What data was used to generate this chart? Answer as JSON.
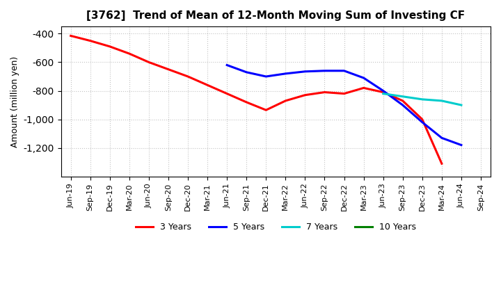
{
  "title": "[3762]  Trend of Mean of 12-Month Moving Sum of Investing CF",
  "ylabel": "Amount (million yen)",
  "background_color": "#ffffff",
  "grid_color": "#aaaaaa",
  "ylim": [
    -1400,
    -350
  ],
  "yticks": [
    -400,
    -600,
    -800,
    -1000,
    -1200
  ],
  "x_labels": [
    "Jun-19",
    "Sep-19",
    "Dec-19",
    "Mar-20",
    "Jun-20",
    "Sep-20",
    "Dec-20",
    "Mar-21",
    "Jun-21",
    "Sep-21",
    "Dec-21",
    "Mar-22",
    "Jun-22",
    "Sep-22",
    "Dec-22",
    "Mar-23",
    "Jun-23",
    "Sep-23",
    "Dec-23",
    "Mar-24",
    "Jun-24",
    "Sep-24"
  ],
  "series_3y": {
    "label": "3 Years",
    "color": "#ff0000",
    "x": [
      0,
      1,
      2,
      3,
      4,
      5,
      6,
      7,
      8,
      9,
      10,
      11,
      12,
      13,
      14,
      15,
      16,
      17,
      18,
      19
    ],
    "y": [
      -415,
      -450,
      -490,
      -540,
      -600,
      -650,
      -700,
      -760,
      -820,
      -880,
      -935,
      -870,
      -830,
      -810,
      -820,
      -780,
      -810,
      -870,
      -1000,
      -1310
    ]
  },
  "series_5y": {
    "label": "5 Years",
    "color": "#0000ff",
    "x": [
      8,
      9,
      10,
      11,
      12,
      13,
      14,
      15,
      16,
      17,
      18,
      19,
      20
    ],
    "y": [
      -620,
      -670,
      -700,
      -680,
      -665,
      -660,
      -660,
      -710,
      -800,
      -900,
      -1020,
      -1130,
      -1180
    ]
  },
  "series_7y": {
    "label": "7 Years",
    "color": "#00cccc",
    "x": [
      16,
      17,
      18,
      19,
      20
    ],
    "y": [
      -820,
      -840,
      -860,
      -870,
      -900
    ]
  },
  "series_10y": {
    "label": "10 Years",
    "color": "#008000",
    "x": [],
    "y": []
  }
}
